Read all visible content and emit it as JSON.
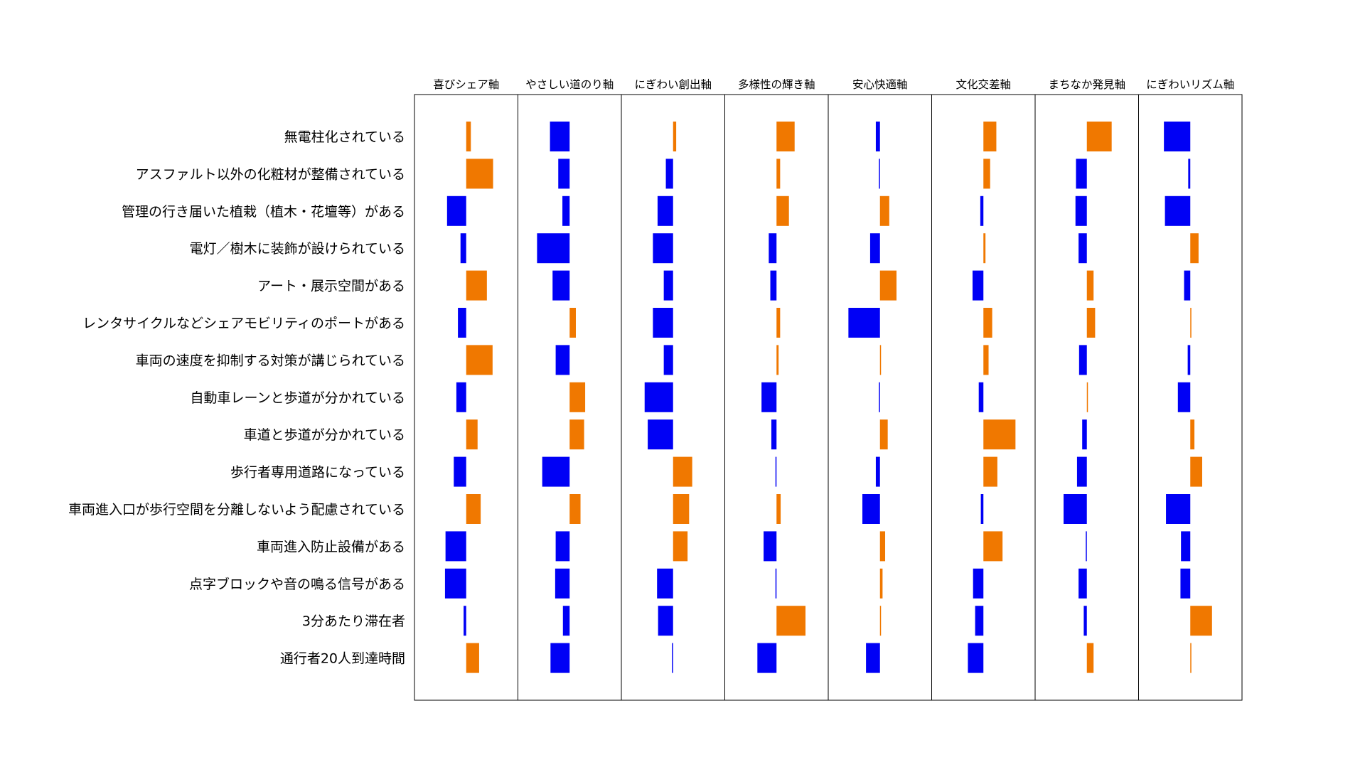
{
  "chart_data": {
    "type": "bar",
    "orientation": "horizontal",
    "layout": "small-multiples",
    "legend": "none",
    "grid": false,
    "colors": {
      "positive": "#f07800",
      "negative": "#0000f5"
    },
    "panels": [
      "喜びシェア軸",
      "やさしい道のり軸",
      "にぎわい創出軸",
      "多様性の輝き軸",
      "安心快適軸",
      "文化交差軸",
      "まちなか発見軸",
      "にぎわいリズム軸"
    ],
    "categories": [
      "無電柱化されている",
      "アスファルト以外の化粧材が整備されている",
      "管理の行き届いた植栽（植木・花壇等）がある",
      "電灯／樹木に装飾が設けられている",
      "アート・展示空間がある",
      "レンタサイクルなどシェアモビリティのポートがある",
      "車両の速度を抑制する対策が講じられている",
      "自動車レーンと歩道が分かれている",
      "車道と歩道が分かれている",
      "歩行者専用道路になっている",
      "車両進入口が歩行空間を分離しないよう配慮されている",
      "車両進入防止設備がある",
      "点字ブロックや音の鳴る信号がある",
      "3分あたり滞在者",
      "通行者20人到達時間"
    ],
    "xlim": [
      -1,
      1
    ],
    "series": [
      {
        "values": [
          0.09,
          0.52,
          -0.37,
          -0.11,
          0.4,
          -0.16,
          0.51,
          -0.19,
          0.22,
          -0.24,
          0.28,
          -0.4,
          -0.41,
          -0.05,
          0.25
        ]
      },
      {
        "values": [
          -0.38,
          -0.22,
          -0.14,
          -0.63,
          -0.33,
          0.12,
          -0.27,
          0.3,
          0.28,
          -0.53,
          0.21,
          -0.27,
          -0.28,
          -0.13,
          -0.37
        ]
      },
      {
        "values": [
          0.06,
          -0.14,
          -0.3,
          -0.39,
          -0.18,
          -0.39,
          -0.18,
          -0.55,
          -0.49,
          0.37,
          0.31,
          0.28,
          -0.31,
          -0.29,
          -0.02
        ]
      },
      {
        "values": [
          0.35,
          0.07,
          0.24,
          -0.15,
          -0.12,
          0.07,
          0.04,
          -0.29,
          -0.1,
          -0.01,
          0.08,
          -0.25,
          -0.01,
          0.56,
          -0.37
        ]
      },
      {
        "values": [
          -0.08,
          -0.01,
          0.18,
          -0.19,
          0.32,
          -0.61,
          0.0,
          -0.01,
          0.15,
          -0.08,
          -0.34,
          0.1,
          0.05,
          0.01,
          -0.27
        ]
      },
      {
        "values": [
          0.25,
          0.13,
          -0.06,
          0.04,
          -0.21,
          0.17,
          0.1,
          -0.09,
          0.62,
          0.27,
          -0.05,
          0.37,
          -0.2,
          -0.16,
          -0.3
        ]
      },
      {
        "values": [
          0.48,
          -0.21,
          -0.22,
          -0.16,
          0.13,
          0.16,
          -0.15,
          0.02,
          -0.09,
          -0.19,
          -0.45,
          -0.01,
          -0.16,
          -0.06,
          0.13
        ]
      },
      {
        "values": [
          -0.51,
          -0.04,
          -0.49,
          0.16,
          -0.12,
          0.01,
          -0.05,
          -0.24,
          0.08,
          0.23,
          -0.47,
          -0.18,
          -0.19,
          0.42,
          0.0
        ]
      }
    ]
  }
}
